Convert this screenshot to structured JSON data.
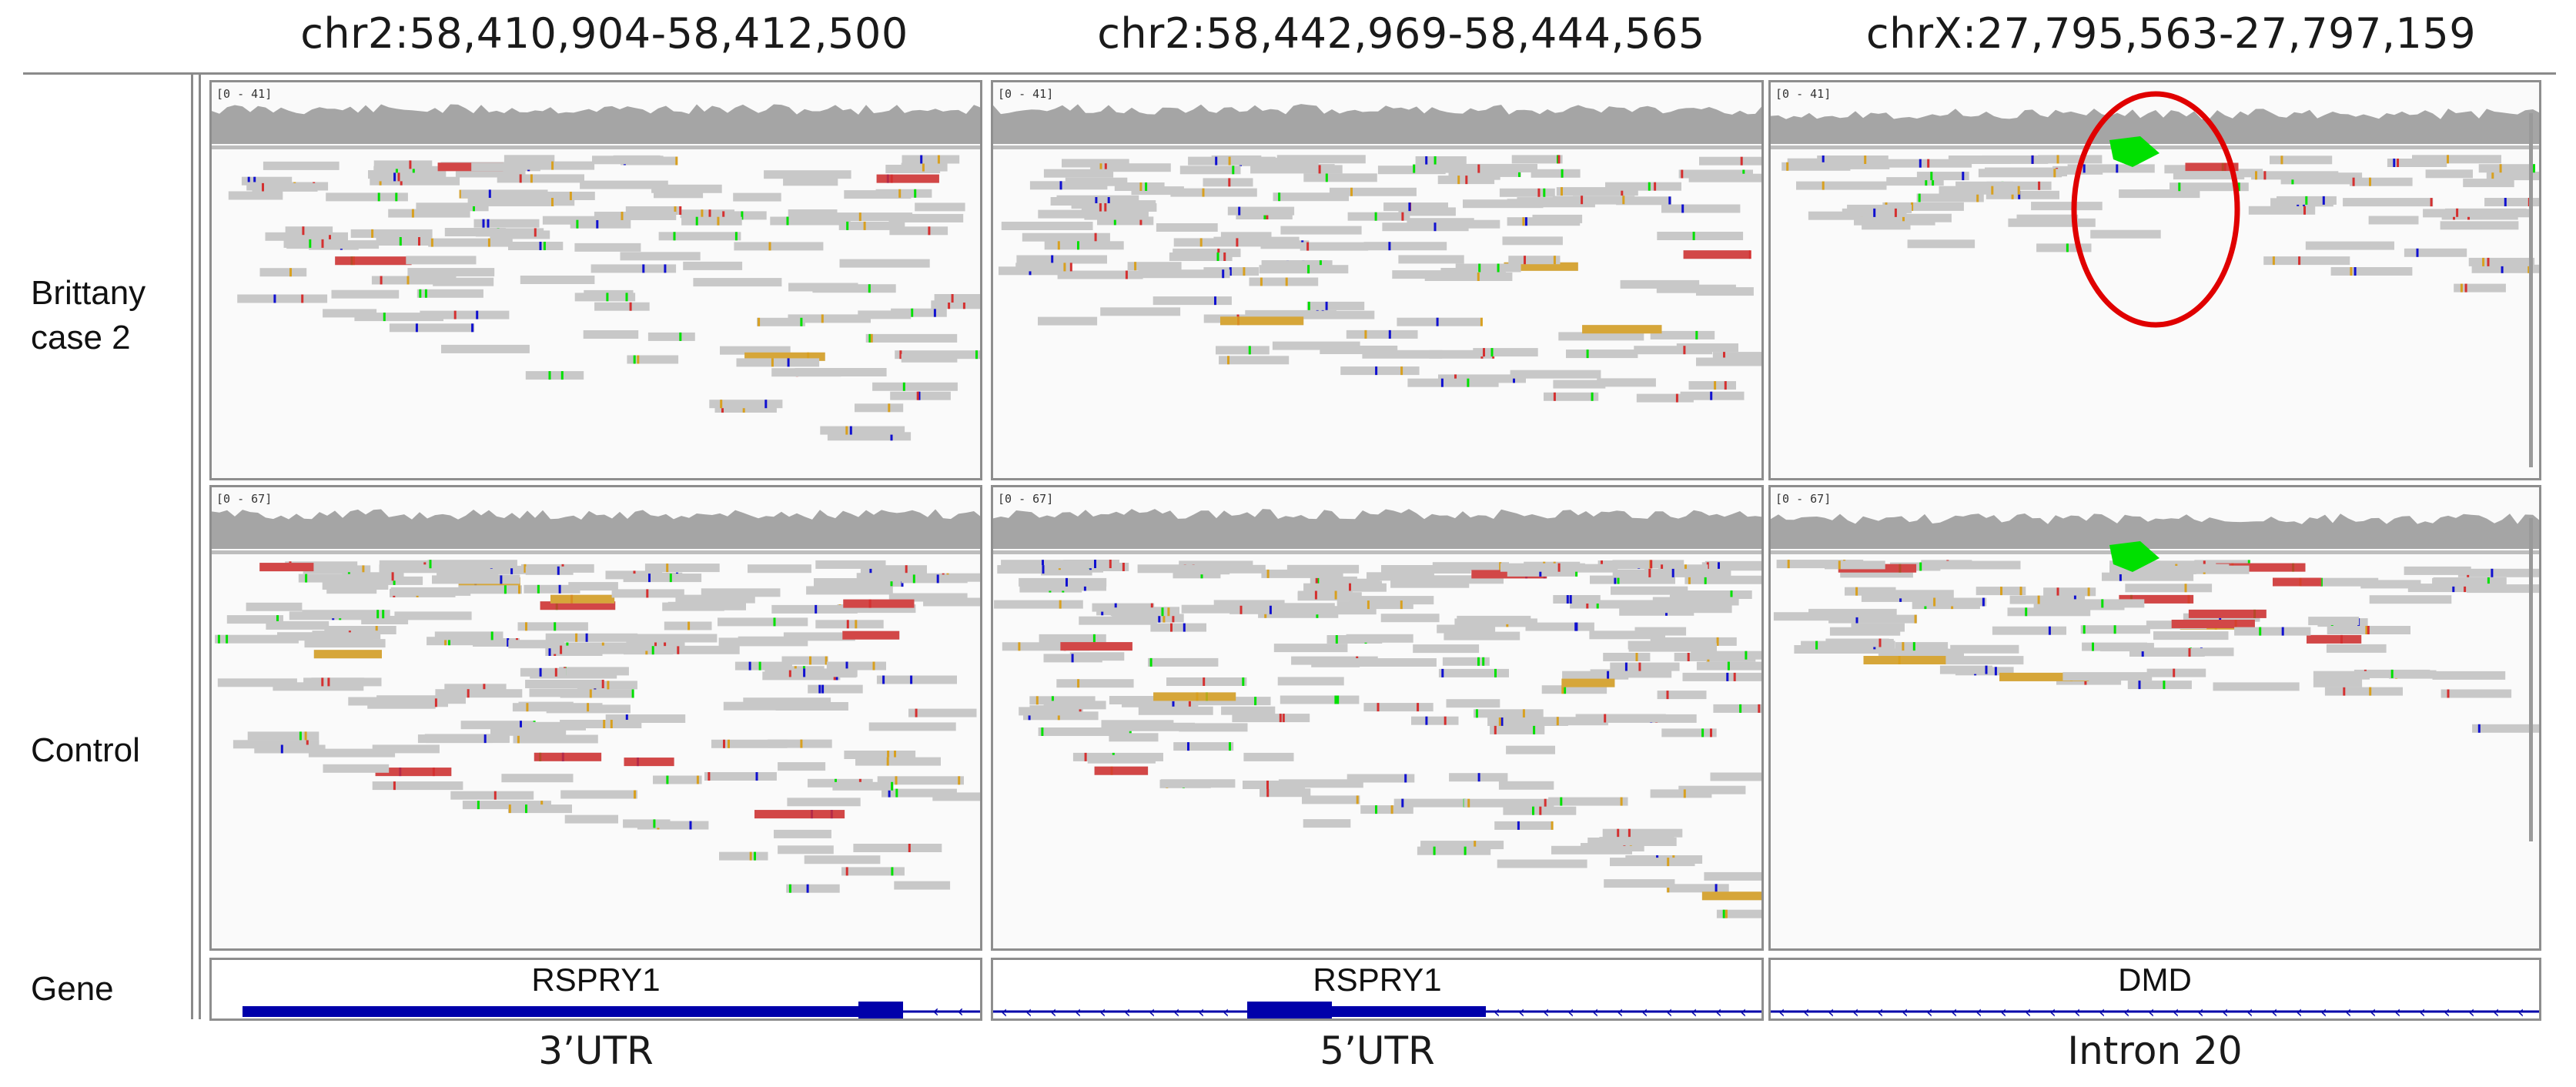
{
  "loci": [
    "chr2:58,410,904-58,412,500",
    "chr2:58,442,969-58,444,565",
    "chrX:27,795,563-27,797,159"
  ],
  "rows": [
    {
      "label_line1": "Brittany",
      "label_line2": "case 2",
      "range": "[0 - 41]"
    },
    {
      "label_line1": "Control",
      "label_line2": "",
      "range": "[0 - 67]"
    }
  ],
  "gene_track": {
    "label": "Gene",
    "genes": [
      "RSPRY1",
      "RSPRY1",
      "DMD"
    ]
  },
  "regions": [
    "3’UTR",
    "5’UTR",
    "Intron 20"
  ],
  "colors": {
    "read": "#c8c8c8",
    "coverage": "#a5a5a5",
    "gene": "#0000aa",
    "highlight_circle": "#e00000",
    "mismatch_red": "#d43030",
    "mismatch_green": "#00e000",
    "mismatch_blue": "#1010d0",
    "mismatch_orange": "#d8a020"
  }
}
